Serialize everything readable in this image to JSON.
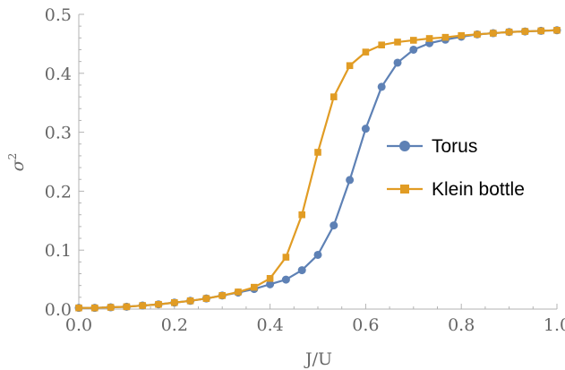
{
  "chart_data": {
    "type": "line",
    "title": "",
    "xlabel": "J/U",
    "ylabel_base": "σ",
    "ylabel_sup": "2",
    "xlim": [
      0.0,
      1.0
    ],
    "ylim": [
      0.0,
      0.5
    ],
    "xticks": [
      "0.0",
      "0.2",
      "0.4",
      "0.6",
      "0.8",
      "1.0"
    ],
    "yticks": [
      "0.0",
      "0.1",
      "0.2",
      "0.3",
      "0.4",
      "0.5"
    ],
    "grid": false,
    "legend_position": "right",
    "x": [
      0.0,
      0.0333,
      0.0667,
      0.1,
      0.1333,
      0.1667,
      0.2,
      0.2333,
      0.2667,
      0.3,
      0.3333,
      0.3667,
      0.4,
      0.4333,
      0.4667,
      0.5,
      0.5333,
      0.5667,
      0.6,
      0.6333,
      0.6667,
      0.7,
      0.7333,
      0.7667,
      0.8,
      0.8333,
      0.8667,
      0.9,
      0.9333,
      0.9667,
      1.0
    ],
    "series": [
      {
        "name": "Torus",
        "color": "#5e81b5",
        "marker": "circle",
        "values": [
          0.002,
          0.002,
          0.003,
          0.004,
          0.006,
          0.008,
          0.011,
          0.014,
          0.018,
          0.023,
          0.028,
          0.034,
          0.042,
          0.05,
          0.066,
          0.092,
          0.142,
          0.219,
          0.306,
          0.377,
          0.418,
          0.44,
          0.451,
          0.457,
          0.462,
          0.466,
          0.468,
          0.47,
          0.471,
          0.472,
          0.473
        ]
      },
      {
        "name": "Klein bottle",
        "color": "#e19c24",
        "marker": "square",
        "values": [
          0.002,
          0.002,
          0.003,
          0.004,
          0.006,
          0.008,
          0.011,
          0.014,
          0.018,
          0.023,
          0.029,
          0.037,
          0.052,
          0.088,
          0.16,
          0.266,
          0.36,
          0.413,
          0.436,
          0.448,
          0.453,
          0.456,
          0.459,
          0.461,
          0.464,
          0.466,
          0.468,
          0.47,
          0.471,
          0.472,
          0.473
        ]
      }
    ]
  }
}
